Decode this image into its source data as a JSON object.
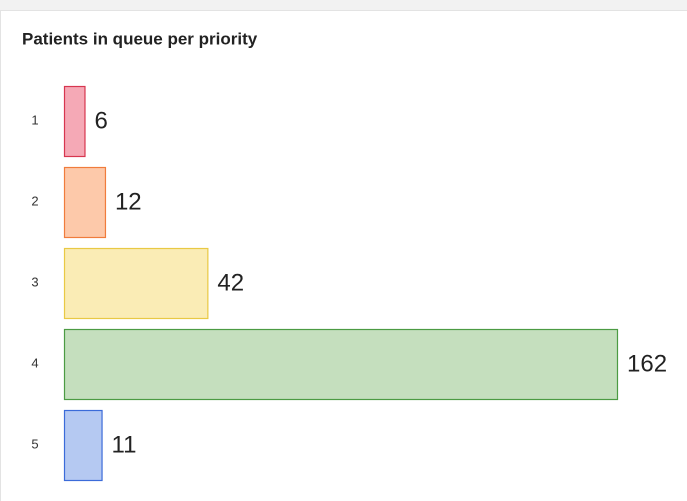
{
  "chart_data": {
    "type": "hbar",
    "title": "Patients in queue per priority",
    "categories": [
      "1",
      "2",
      "3",
      "4",
      "5"
    ],
    "values": [
      6,
      12,
      42,
      162,
      11
    ],
    "colors": [
      "#f5a9b6",
      "#fdc9aa",
      "#faecb5",
      "#c5dfbe",
      "#b5c9f2"
    ],
    "edge_colors": [
      "#d7364f",
      "#f07c3c",
      "#e9c944",
      "#4c9b43",
      "#3b6bd9"
    ]
  }
}
